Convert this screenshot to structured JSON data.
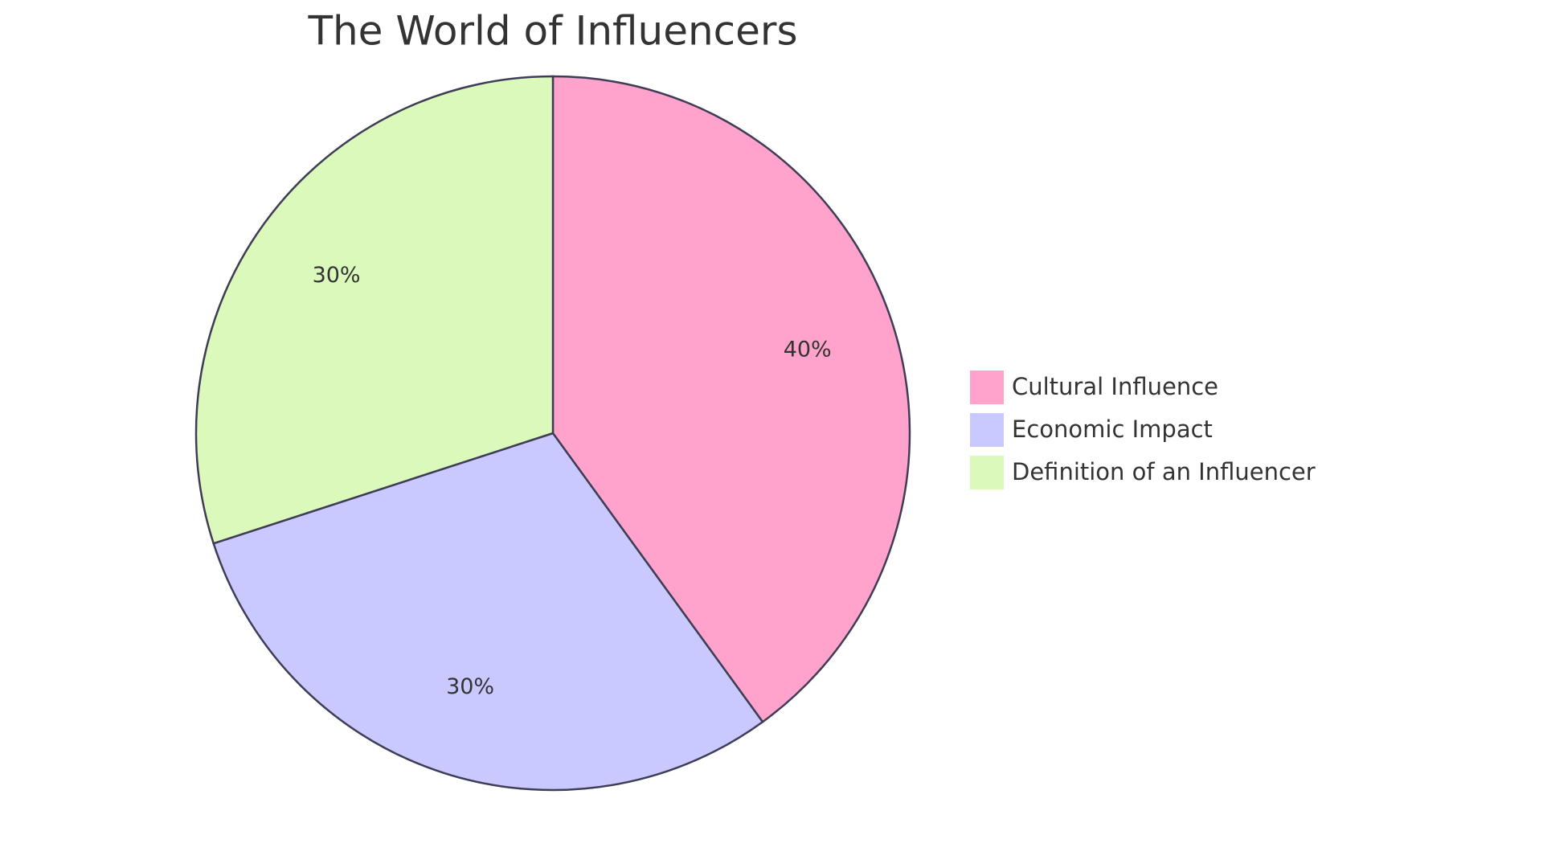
{
  "chart_data": {
    "type": "pie",
    "title": "The World of Influencers",
    "categories": [
      "Cultural Influence",
      "Economic Impact",
      "Definition of an Influencer"
    ],
    "values": [
      40,
      30,
      30
    ],
    "value_labels": [
      "40%",
      "30%",
      "30%"
    ],
    "colors": [
      "#ffa3cc",
      "#c9c9ff",
      "#daf9bb"
    ]
  }
}
